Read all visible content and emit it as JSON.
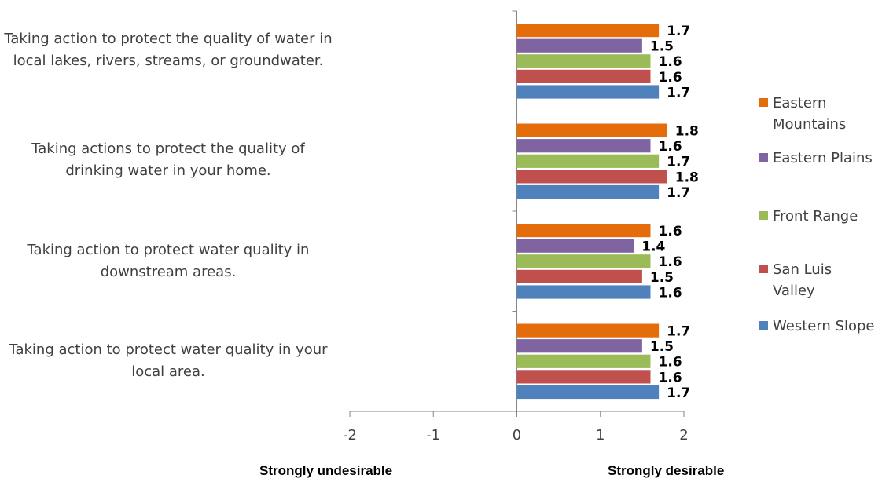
{
  "chart_data": {
    "type": "bar",
    "orientation": "horizontal",
    "title": "",
    "xlabel": "",
    "ylabel": "",
    "xlim": [
      -2,
      2
    ],
    "x_ticks": [
      "-2",
      "-1",
      "0",
      "1",
      "2"
    ],
    "categories": [
      "Taking action to protect the quality of water in local lakes, rivers, streams, or groundwater.",
      "Taking actions to protect the quality of drinking water in your home.",
      "Taking action to protect water quality in downstream areas.",
      "Taking action to protect water quality in your local area."
    ],
    "series": [
      {
        "name": "Eastern Mountains",
        "color": "#E46C0A",
        "values": [
          1.7,
          1.8,
          1.6,
          1.7
        ],
        "labels": [
          "1.7",
          "1.8",
          "1.6",
          "1.7"
        ]
      },
      {
        "name": "Eastern Plains",
        "color": "#8064A2",
        "values": [
          1.5,
          1.6,
          1.4,
          1.5
        ],
        "labels": [
          "1.5",
          "1.6",
          "1.4",
          "1.5"
        ]
      },
      {
        "name": "Front Range",
        "color": "#9BBB59",
        "values": [
          1.6,
          1.7,
          1.6,
          1.6
        ],
        "labels": [
          "1.6",
          "1.7",
          "1.6",
          "1.6"
        ]
      },
      {
        "name": "San Luis Valley",
        "color": "#C0504D",
        "values": [
          1.6,
          1.8,
          1.5,
          1.6
        ],
        "labels": [
          "1.6",
          "1.8",
          "1.5",
          "1.6"
        ]
      },
      {
        "name": "Western Slope",
        "color": "#4F81BD",
        "values": [
          1.7,
          1.7,
          1.6,
          1.7
        ],
        "labels": [
          "1.7",
          "1.7",
          "1.6",
          "1.7"
        ]
      }
    ],
    "legend_position": "right",
    "grid": false,
    "axis_notes": {
      "left": "Strongly undesirable",
      "right": "Strongly desirable"
    }
  }
}
